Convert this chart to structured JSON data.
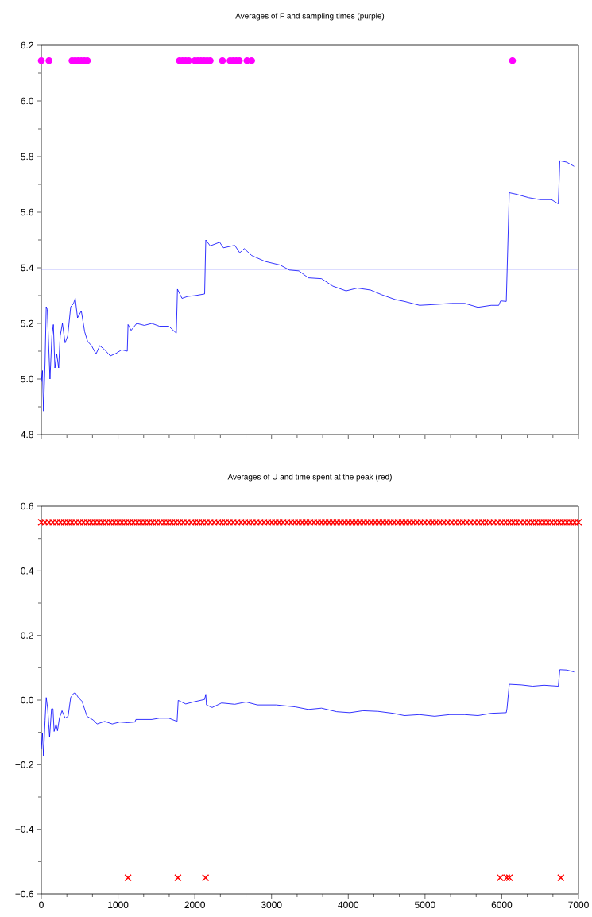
{
  "chart_data": [
    {
      "type": "line",
      "title": "Averages of F and sampling times (purple)",
      "xlim": [
        0,
        7000
      ],
      "xticks": [
        0,
        1000,
        2000,
        3000,
        4000,
        5000,
        6000,
        7000
      ],
      "ylim": [
        4.8,
        6.2
      ],
      "yticks": [
        4.8,
        {
          "value": 5.0,
          "label": "5.0"
        },
        5.2,
        5.4,
        5.6,
        5.8,
        {
          "value": 6.0,
          "label": "6.0"
        },
        6.2
      ],
      "tick_labels": "y",
      "grid": false,
      "line_style": "solid",
      "ref_lines": [
        {
          "axis": "y",
          "value": 5.395,
          "color": "#4040ff"
        }
      ],
      "series": [
        {
          "color": "#0000ff",
          "x": [
            0,
            15,
            29,
            49,
            64,
            78,
            93,
            113,
            138,
            157,
            177,
            201,
            226,
            246,
            275,
            310,
            344,
            383,
            418,
            442,
            472,
            521,
            565,
            604,
            654,
            713,
            762,
            826,
            899,
            973,
            1047,
            1120,
            1130,
            1170,
            1243,
            1342,
            1440,
            1538,
            1661,
            1759,
            1774,
            1833,
            1907,
            2005,
            2128,
            2143,
            2201,
            2324,
            2373,
            2521,
            2585,
            2644,
            2742,
            2914,
            3111,
            3233,
            3356,
            3479,
            3651,
            3799,
            3971,
            4118,
            4290,
            4437,
            4609,
            4732,
            4929,
            5125,
            5347,
            5518,
            5690,
            5862,
            5961,
            5985,
            6059,
            6098,
            6182,
            6354,
            6501,
            6648,
            6737,
            6757,
            6845,
            6943
          ],
          "values": [
            4.99,
            5.03,
            4.885,
            5.06,
            5.26,
            5.25,
            5.14,
            5.0,
            5.155,
            5.196,
            5.04,
            5.09,
            5.04,
            5.155,
            5.2,
            5.13,
            5.155,
            5.26,
            5.27,
            5.29,
            5.22,
            5.245,
            5.17,
            5.135,
            5.12,
            5.09,
            5.12,
            5.105,
            5.083,
            5.092,
            5.105,
            5.1,
            5.196,
            5.175,
            5.2,
            5.193,
            5.2,
            5.19,
            5.19,
            5.165,
            5.323,
            5.29,
            5.297,
            5.3,
            5.306,
            5.5,
            5.479,
            5.492,
            5.472,
            5.481,
            5.454,
            5.469,
            5.444,
            5.423,
            5.41,
            5.392,
            5.389,
            5.364,
            5.361,
            5.334,
            5.317,
            5.327,
            5.32,
            5.303,
            5.286,
            5.279,
            5.265,
            5.268,
            5.272,
            5.272,
            5.258,
            5.265,
            5.265,
            5.281,
            5.279,
            5.67,
            5.665,
            5.652,
            5.645,
            5.645,
            5.63,
            5.785,
            5.78,
            5.765
          ]
        },
        {
          "type": "scatter",
          "color": "#ff00ff",
          "marker": "circle",
          "x": [
            0,
            100,
            400,
            440,
            480,
            520,
            560,
            600,
            1800,
            1840,
            1880,
            1920,
            2000,
            2040,
            2080,
            2120,
            2160,
            2200,
            2360,
            2460,
            2500,
            2540,
            2580,
            2680,
            2740,
            6140
          ],
          "values": [
            6.145,
            6.145,
            6.145,
            6.145,
            6.145,
            6.145,
            6.145,
            6.145,
            6.145,
            6.145,
            6.145,
            6.145,
            6.145,
            6.145,
            6.145,
            6.145,
            6.145,
            6.145,
            6.145,
            6.145,
            6.145,
            6.145,
            6.145,
            6.145,
            6.145,
            6.145
          ]
        }
      ]
    },
    {
      "type": "line",
      "title": "Averages of U and time spent at the peak (red)",
      "xlim": [
        0,
        7000
      ],
      "xticks": [
        0,
        1000,
        2000,
        3000,
        4000,
        5000,
        6000,
        7000
      ],
      "ylim": [
        -0.6,
        0.6
      ],
      "yticks": [
        {
          "value": -0.6,
          "label": "−0.6"
        },
        {
          "value": -0.4,
          "label": "−0.4"
        },
        {
          "value": -0.2,
          "label": "−0.2"
        },
        {
          "value": 0.0,
          "label": "0.0"
        },
        0.2,
        0.4,
        0.6
      ],
      "grid": false,
      "line_style": "solid",
      "series": [
        {
          "color": "#0000ff",
          "x": [
            0,
            15,
            29,
            49,
            64,
            83,
            108,
            133,
            152,
            167,
            192,
            211,
            236,
            270,
            310,
            349,
            383,
            418,
            442,
            482,
            531,
            595,
            678,
            727,
            826,
            924,
            1022,
            1120,
            1219,
            1233,
            1342,
            1440,
            1538,
            1661,
            1769,
            1784,
            1882,
            1980,
            2128,
            2143,
            2152,
            2226,
            2349,
            2521,
            2668,
            2816,
            3061,
            3307,
            3479,
            3651,
            3848,
            4020,
            4192,
            4388,
            4585,
            4732,
            4929,
            5125,
            5322,
            5518,
            5690,
            5862,
            6059,
            6069,
            6098,
            6255,
            6403,
            6550,
            6737,
            6757,
            6845,
            6943
          ],
          "values": [
            -0.15,
            -0.103,
            -0.174,
            -0.062,
            0.008,
            -0.027,
            -0.115,
            -0.027,
            -0.027,
            -0.097,
            -0.074,
            -0.095,
            -0.056,
            -0.033,
            -0.056,
            -0.05,
            0.008,
            0.02,
            0.023,
            0.008,
            -0.004,
            -0.05,
            -0.062,
            -0.074,
            -0.066,
            -0.074,
            -0.068,
            -0.07,
            -0.068,
            -0.06,
            -0.06,
            -0.06,
            -0.056,
            -0.056,
            -0.066,
            -0.001,
            -0.012,
            -0.006,
            0.002,
            0.018,
            -0.015,
            -0.023,
            -0.009,
            -0.013,
            -0.006,
            -0.015,
            -0.015,
            -0.021,
            -0.029,
            -0.025,
            -0.036,
            -0.039,
            -0.033,
            -0.035,
            -0.041,
            -0.048,
            -0.045,
            -0.05,
            -0.045,
            -0.045,
            -0.048,
            -0.041,
            -0.039,
            -0.025,
            0.049,
            0.047,
            0.043,
            0.046,
            0.043,
            0.094,
            0.093,
            0.087
          ]
        },
        {
          "type": "scatter",
          "color": "#ff0000",
          "marker": "cross",
          "x": [
            0,
            50,
            100,
            150,
            200,
            250,
            300,
            350,
            400,
            450,
            500,
            550,
            600,
            650,
            700,
            750,
            800,
            850,
            900,
            950,
            1000,
            1050,
            1100,
            1150,
            1200,
            1250,
            1300,
            1350,
            1400,
            1450,
            1500,
            1550,
            1600,
            1650,
            1700,
            1750,
            1800,
            1850,
            1900,
            1950,
            2000,
            2050,
            2100,
            2150,
            2200,
            2250,
            2300,
            2350,
            2400,
            2450,
            2500,
            2550,
            2600,
            2650,
            2700,
            2750,
            2800,
            2850,
            2900,
            2950,
            3000,
            3050,
            3100,
            3150,
            3200,
            3250,
            3300,
            3350,
            3400,
            3450,
            3500,
            3550,
            3600,
            3650,
            3700,
            3750,
            3800,
            3850,
            3900,
            3950,
            4000,
            4050,
            4100,
            4150,
            4200,
            4250,
            4300,
            4350,
            4400,
            4450,
            4500,
            4550,
            4600,
            4650,
            4700,
            4750,
            4800,
            4850,
            4900,
            4950,
            5000,
            5050,
            5100,
            5150,
            5200,
            5250,
            5300,
            5350,
            5400,
            5450,
            5500,
            5550,
            5600,
            5650,
            5700,
            5750,
            5800,
            5850,
            5900,
            5950,
            6000,
            6050,
            6100,
            6150,
            6200,
            6250,
            6300,
            6350,
            6400,
            6450,
            6500,
            6550,
            6600,
            6650,
            6700,
            6750,
            6800,
            6850,
            6900,
            6950,
            7000
          ],
          "values": [
            0.55,
            0.55,
            0.55,
            0.55,
            0.55,
            0.55,
            0.55,
            0.55,
            0.55,
            0.55,
            0.55,
            0.55,
            0.55,
            0.55,
            0.55,
            0.55,
            0.55,
            0.55,
            0.55,
            0.55,
            0.55,
            0.55,
            0.55,
            0.55,
            0.55,
            0.55,
            0.55,
            0.55,
            0.55,
            0.55,
            0.55,
            0.55,
            0.55,
            0.55,
            0.55,
            0.55,
            0.55,
            0.55,
            0.55,
            0.55,
            0.55,
            0.55,
            0.55,
            0.55,
            0.55,
            0.55,
            0.55,
            0.55,
            0.55,
            0.55,
            0.55,
            0.55,
            0.55,
            0.55,
            0.55,
            0.55,
            0.55,
            0.55,
            0.55,
            0.55,
            0.55,
            0.55,
            0.55,
            0.55,
            0.55,
            0.55,
            0.55,
            0.55,
            0.55,
            0.55,
            0.55,
            0.55,
            0.55,
            0.55,
            0.55,
            0.55,
            0.55,
            0.55,
            0.55,
            0.55,
            0.55,
            0.55,
            0.55,
            0.55,
            0.55,
            0.55,
            0.55,
            0.55,
            0.55,
            0.55,
            0.55,
            0.55,
            0.55,
            0.55,
            0.55,
            0.55,
            0.55,
            0.55,
            0.55,
            0.55,
            0.55,
            0.55,
            0.55,
            0.55,
            0.55,
            0.55,
            0.55,
            0.55,
            0.55,
            0.55,
            0.55,
            0.55,
            0.55,
            0.55,
            0.55,
            0.55,
            0.55,
            0.55,
            0.55,
            0.55,
            0.55,
            0.55,
            0.55,
            0.55,
            0.55,
            0.55,
            0.55,
            0.55,
            0.55,
            0.55,
            0.55,
            0.55,
            0.55,
            0.55,
            0.55,
            0.55,
            0.55,
            0.55,
            0.55,
            0.55,
            0.55
          ]
        },
        {
          "type": "scatter",
          "color": "#ff0000",
          "marker": "cross",
          "x": [
            1130,
            1780,
            2140,
            5980,
            6065,
            6100,
            6770
          ],
          "values": [
            -0.55,
            -0.55,
            -0.55,
            -0.55,
            -0.55,
            -0.55,
            -0.55
          ]
        }
      ]
    }
  ]
}
